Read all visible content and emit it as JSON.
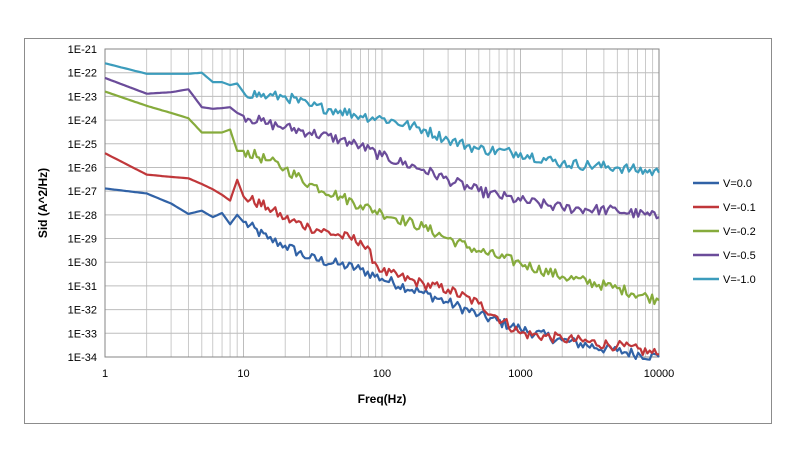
{
  "chart_data": {
    "type": "line",
    "xscale": "log",
    "yscale": "log",
    "xlabel": "Freq(Hz)",
    "ylabel": "Sid (A^2/Hz)",
    "xlim": [
      1,
      10000
    ],
    "ylim": [
      1e-34,
      1e-21
    ],
    "x_ticks": [
      "1",
      "10",
      "100",
      "1000",
      "10000"
    ],
    "y_ticks": [
      "1E-34",
      "1E-33",
      "1E-32",
      "1E-31",
      "1E-30",
      "1E-29",
      "1E-28",
      "1E-27",
      "1E-26",
      "1E-25",
      "1E-24",
      "1E-23",
      "1E-22",
      "1E-21"
    ],
    "grid": "major horizontal, major and minor vertical",
    "legend_position": "right",
    "series": [
      {
        "name": "V=0.0",
        "color": "#3162a6",
        "points": [
          [
            1,
            1.3e-27
          ],
          [
            2,
            8e-28
          ],
          [
            3,
            3e-28
          ],
          [
            4,
            1.1e-28
          ],
          [
            5,
            1.5e-28
          ],
          [
            6,
            8e-29
          ],
          [
            7,
            1.2e-28
          ],
          [
            8,
            4e-29
          ],
          [
            9,
            1e-28
          ],
          [
            10,
            5e-29
          ],
          [
            15,
            1e-29
          ],
          [
            20,
            5e-30
          ],
          [
            30,
            1.5e-30
          ],
          [
            50,
            8e-31
          ],
          [
            70,
            5e-31
          ],
          [
            100,
            2e-31
          ],
          [
            200,
            5e-32
          ],
          [
            300,
            2e-32
          ],
          [
            500,
            6e-33
          ],
          [
            1000,
            1.5e-33
          ],
          [
            2000,
            5e-34
          ],
          [
            5000,
            1.8e-34
          ],
          [
            10000,
            1e-34
          ]
        ]
      },
      {
        "name": "V=-0.1",
        "color": "#c0373a",
        "points": [
          [
            1,
            4e-26
          ],
          [
            2,
            5e-27
          ],
          [
            3,
            4e-27
          ],
          [
            4,
            3.5e-27
          ],
          [
            5,
            2e-27
          ],
          [
            6,
            1.2e-27
          ],
          [
            7,
            7e-28
          ],
          [
            8,
            4e-28
          ],
          [
            9,
            3e-27
          ],
          [
            10,
            6e-28
          ],
          [
            15,
            2e-28
          ],
          [
            20,
            7e-29
          ],
          [
            30,
            3e-29
          ],
          [
            50,
            1.3e-29
          ],
          [
            70,
            8e-30
          ],
          [
            100,
            4e-31
          ],
          [
            200,
            1.2e-31
          ],
          [
            300,
            7e-32
          ],
          [
            500,
            1.8e-32
          ],
          [
            1000,
            1e-33
          ],
          [
            2000,
            6e-34
          ],
          [
            5000,
            3e-34
          ],
          [
            10000,
            1.3e-34
          ]
        ]
      },
      {
        "name": "V=-0.2",
        "color": "#86ab3c",
        "points": [
          [
            1,
            1.6e-23
          ],
          [
            2,
            4e-24
          ],
          [
            3,
            2e-24
          ],
          [
            4,
            1.2e-24
          ],
          [
            5,
            3e-25
          ],
          [
            6,
            3e-25
          ],
          [
            7,
            3e-25
          ],
          [
            8,
            4e-25
          ],
          [
            9,
            5e-26
          ],
          [
            10,
            5e-26
          ],
          [
            15,
            2e-26
          ],
          [
            20,
            9e-27
          ],
          [
            30,
            2e-27
          ],
          [
            50,
            6e-28
          ],
          [
            70,
            2.5e-28
          ],
          [
            100,
            1.2e-28
          ],
          [
            200,
            3e-29
          ],
          [
            300,
            1e-29
          ],
          [
            500,
            3e-30
          ],
          [
            1000,
            9e-31
          ],
          [
            2000,
            2.5e-31
          ],
          [
            5000,
            8e-32
          ],
          [
            10000,
            2.5e-32
          ]
        ]
      },
      {
        "name": "V=-0.5",
        "color": "#6b4c9a",
        "points": [
          [
            1,
            6e-23
          ],
          [
            2,
            1.3e-23
          ],
          [
            3,
            1.5e-23
          ],
          [
            4,
            2e-23
          ],
          [
            5,
            3.5e-24
          ],
          [
            6,
            3e-24
          ],
          [
            7,
            3.2e-24
          ],
          [
            8,
            3.5e-24
          ],
          [
            9,
            2e-24
          ],
          [
            10,
            1.5e-24
          ],
          [
            15,
            7e-25
          ],
          [
            20,
            5e-25
          ],
          [
            30,
            3e-25
          ],
          [
            50,
            1.5e-25
          ],
          [
            70,
            8e-26
          ],
          [
            100,
            3e-26
          ],
          [
            200,
            8e-27
          ],
          [
            300,
            3e-27
          ],
          [
            500,
            1e-27
          ],
          [
            1000,
            4e-28
          ],
          [
            2000,
            2e-28
          ],
          [
            5000,
            1.5e-28
          ],
          [
            10000,
            8e-29
          ]
        ]
      },
      {
        "name": "V=-1.0",
        "color": "#3c9cbc",
        "points": [
          [
            1,
            2.5e-22
          ],
          [
            2,
            9e-23
          ],
          [
            3,
            9e-23
          ],
          [
            4,
            9e-23
          ],
          [
            5,
            1e-22
          ],
          [
            6,
            4e-23
          ],
          [
            7,
            4e-23
          ],
          [
            8,
            3e-23
          ],
          [
            9,
            3.5e-23
          ],
          [
            10,
            1.5e-23
          ],
          [
            15,
            1e-23
          ],
          [
            20,
            1e-23
          ],
          [
            30,
            4e-24
          ],
          [
            50,
            2.5e-24
          ],
          [
            70,
            1.5e-24
          ],
          [
            100,
            1.2e-24
          ],
          [
            200,
            4e-25
          ],
          [
            300,
            1.5e-25
          ],
          [
            500,
            6e-26
          ],
          [
            1000,
            4e-26
          ],
          [
            2000,
            1.5e-26
          ],
          [
            5000,
            1e-26
          ],
          [
            10000,
            6e-27
          ]
        ]
      }
    ]
  }
}
